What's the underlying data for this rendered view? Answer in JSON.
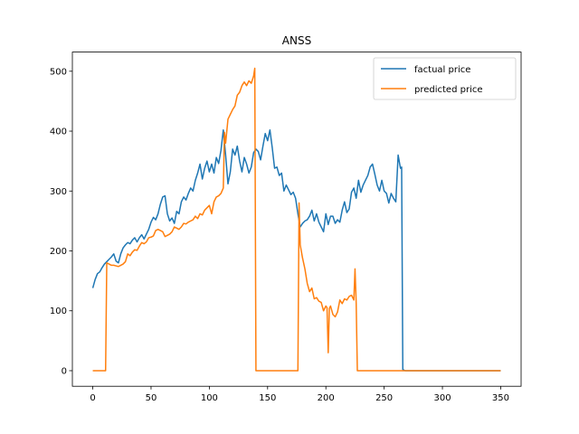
{
  "chart_data": {
    "type": "line",
    "title": "ANSS",
    "xlabel": "",
    "ylabel": "",
    "xlim": [
      -17.5,
      367.5
    ],
    "ylim": [
      -26,
      532
    ],
    "xticks": [
      0,
      50,
      100,
      150,
      200,
      250,
      300,
      350
    ],
    "yticks": [
      0,
      100,
      200,
      300,
      400,
      500
    ],
    "legend_position": "top-right",
    "grid": false,
    "series": [
      {
        "name": "factual price",
        "color": "#1f77b4",
        "points": [
          [
            0,
            138
          ],
          [
            2,
            152
          ],
          [
            4,
            162
          ],
          [
            6,
            165
          ],
          [
            8,
            172
          ],
          [
            10,
            178
          ],
          [
            12,
            182
          ],
          [
            14,
            186
          ],
          [
            16,
            190
          ],
          [
            18,
            195
          ],
          [
            20,
            183
          ],
          [
            22,
            180
          ],
          [
            24,
            195
          ],
          [
            26,
            205
          ],
          [
            28,
            210
          ],
          [
            30,
            214
          ],
          [
            32,
            212
          ],
          [
            34,
            218
          ],
          [
            36,
            222
          ],
          [
            38,
            215
          ],
          [
            40,
            222
          ],
          [
            42,
            227
          ],
          [
            44,
            220
          ],
          [
            46,
            228
          ],
          [
            48,
            236
          ],
          [
            50,
            248
          ],
          [
            52,
            256
          ],
          [
            54,
            252
          ],
          [
            56,
            262
          ],
          [
            58,
            278
          ],
          [
            60,
            290
          ],
          [
            62,
            292
          ],
          [
            64,
            262
          ],
          [
            66,
            250
          ],
          [
            68,
            255
          ],
          [
            70,
            246
          ],
          [
            72,
            266
          ],
          [
            74,
            262
          ],
          [
            76,
            282
          ],
          [
            78,
            290
          ],
          [
            80,
            285
          ],
          [
            82,
            296
          ],
          [
            84,
            305
          ],
          [
            86,
            300
          ],
          [
            88,
            318
          ],
          [
            90,
            330
          ],
          [
            92,
            345
          ],
          [
            94,
            320
          ],
          [
            96,
            338
          ],
          [
            98,
            350
          ],
          [
            100,
            332
          ],
          [
            102,
            345
          ],
          [
            104,
            330
          ],
          [
            106,
            356
          ],
          [
            108,
            346
          ],
          [
            110,
            368
          ],
          [
            112,
            402
          ],
          [
            114,
            360
          ],
          [
            116,
            312
          ],
          [
            118,
            332
          ],
          [
            120,
            370
          ],
          [
            122,
            360
          ],
          [
            124,
            375
          ],
          [
            126,
            350
          ],
          [
            128,
            332
          ],
          [
            130,
            356
          ],
          [
            132,
            345
          ],
          [
            134,
            330
          ],
          [
            136,
            340
          ],
          [
            138,
            364
          ],
          [
            140,
            370
          ],
          [
            142,
            366
          ],
          [
            144,
            352
          ],
          [
            146,
            375
          ],
          [
            148,
            396
          ],
          [
            150,
            384
          ],
          [
            152,
            402
          ],
          [
            154,
            372
          ],
          [
            156,
            338
          ],
          [
            158,
            340
          ],
          [
            160,
            326
          ],
          [
            162,
            330
          ],
          [
            164,
            300
          ],
          [
            166,
            310
          ],
          [
            168,
            302
          ],
          [
            170,
            294
          ],
          [
            172,
            298
          ],
          [
            174,
            288
          ],
          [
            176,
            262
          ],
          [
            178,
            240
          ],
          [
            180,
            246
          ],
          [
            182,
            250
          ],
          [
            184,
            252
          ],
          [
            186,
            258
          ],
          [
            188,
            268
          ],
          [
            190,
            250
          ],
          [
            192,
            262
          ],
          [
            194,
            248
          ],
          [
            196,
            240
          ],
          [
            198,
            232
          ],
          [
            200,
            262
          ],
          [
            202,
            244
          ],
          [
            204,
            258
          ],
          [
            206,
            258
          ],
          [
            208,
            246
          ],
          [
            210,
            252
          ],
          [
            212,
            248
          ],
          [
            214,
            268
          ],
          [
            216,
            282
          ],
          [
            218,
            264
          ],
          [
            220,
            270
          ],
          [
            222,
            298
          ],
          [
            224,
            305
          ],
          [
            226,
            288
          ],
          [
            228,
            318
          ],
          [
            230,
            298
          ],
          [
            232,
            310
          ],
          [
            234,
            318
          ],
          [
            236,
            326
          ],
          [
            238,
            340
          ],
          [
            240,
            345
          ],
          [
            242,
            328
          ],
          [
            244,
            310
          ],
          [
            246,
            300
          ],
          [
            248,
            318
          ],
          [
            250,
            300
          ],
          [
            252,
            296
          ],
          [
            254,
            280
          ],
          [
            256,
            296
          ],
          [
            258,
            288
          ],
          [
            260,
            282
          ],
          [
            262,
            360
          ],
          [
            264,
            338
          ],
          [
            265,
            340
          ],
          [
            266,
            2
          ],
          [
            268,
            0
          ],
          [
            300,
            0
          ],
          [
            340,
            0
          ],
          [
            350,
            0
          ]
        ]
      },
      {
        "name": "predicted price",
        "color": "#ff7f0e",
        "points": [
          [
            0,
            0
          ],
          [
            11,
            0
          ],
          [
            12,
            180
          ],
          [
            14,
            178
          ],
          [
            16,
            176
          ],
          [
            18,
            176
          ],
          [
            20,
            175
          ],
          [
            22,
            174
          ],
          [
            24,
            176
          ],
          [
            26,
            178
          ],
          [
            28,
            182
          ],
          [
            30,
            195
          ],
          [
            32,
            192
          ],
          [
            34,
            198
          ],
          [
            36,
            202
          ],
          [
            38,
            201
          ],
          [
            40,
            208
          ],
          [
            42,
            214
          ],
          [
            44,
            212
          ],
          [
            46,
            215
          ],
          [
            48,
            222
          ],
          [
            50,
            223
          ],
          [
            52,
            225
          ],
          [
            54,
            234
          ],
          [
            56,
            236
          ],
          [
            58,
            234
          ],
          [
            60,
            232
          ],
          [
            62,
            224
          ],
          [
            64,
            226
          ],
          [
            66,
            228
          ],
          [
            68,
            232
          ],
          [
            70,
            240
          ],
          [
            72,
            238
          ],
          [
            74,
            236
          ],
          [
            76,
            240
          ],
          [
            78,
            246
          ],
          [
            80,
            245
          ],
          [
            82,
            248
          ],
          [
            84,
            250
          ],
          [
            86,
            252
          ],
          [
            88,
            258
          ],
          [
            90,
            254
          ],
          [
            92,
            262
          ],
          [
            94,
            260
          ],
          [
            96,
            268
          ],
          [
            98,
            272
          ],
          [
            100,
            276
          ],
          [
            102,
            262
          ],
          [
            104,
            282
          ],
          [
            106,
            290
          ],
          [
            108,
            292
          ],
          [
            110,
            296
          ],
          [
            112,
            305
          ],
          [
            113,
            398
          ],
          [
            114,
            380
          ],
          [
            116,
            420
          ],
          [
            118,
            428
          ],
          [
            120,
            436
          ],
          [
            122,
            442
          ],
          [
            124,
            460
          ],
          [
            126,
            465
          ],
          [
            128,
            476
          ],
          [
            130,
            482
          ],
          [
            132,
            476
          ],
          [
            134,
            484
          ],
          [
            136,
            480
          ],
          [
            138,
            492
          ],
          [
            139,
            505
          ],
          [
            140,
            0
          ],
          [
            176,
            0
          ],
          [
            177,
            280
          ],
          [
            178,
            210
          ],
          [
            180,
            188
          ],
          [
            182,
            170
          ],
          [
            184,
            146
          ],
          [
            186,
            132
          ],
          [
            188,
            138
          ],
          [
            190,
            120
          ],
          [
            192,
            122
          ],
          [
            194,
            116
          ],
          [
            196,
            114
          ],
          [
            198,
            100
          ],
          [
            200,
            108
          ],
          [
            201,
            105
          ],
          [
            202,
            30
          ],
          [
            203,
            104
          ],
          [
            204,
            108
          ],
          [
            206,
            94
          ],
          [
            208,
            90
          ],
          [
            210,
            98
          ],
          [
            212,
            118
          ],
          [
            214,
            112
          ],
          [
            216,
            120
          ],
          [
            218,
            118
          ],
          [
            220,
            124
          ],
          [
            222,
            126
          ],
          [
            224,
            118
          ],
          [
            225,
            170
          ],
          [
            226,
            114
          ],
          [
            227,
            0
          ],
          [
            260,
            0
          ],
          [
            300,
            0
          ],
          [
            340,
            0
          ],
          [
            350,
            0
          ]
        ]
      }
    ]
  }
}
